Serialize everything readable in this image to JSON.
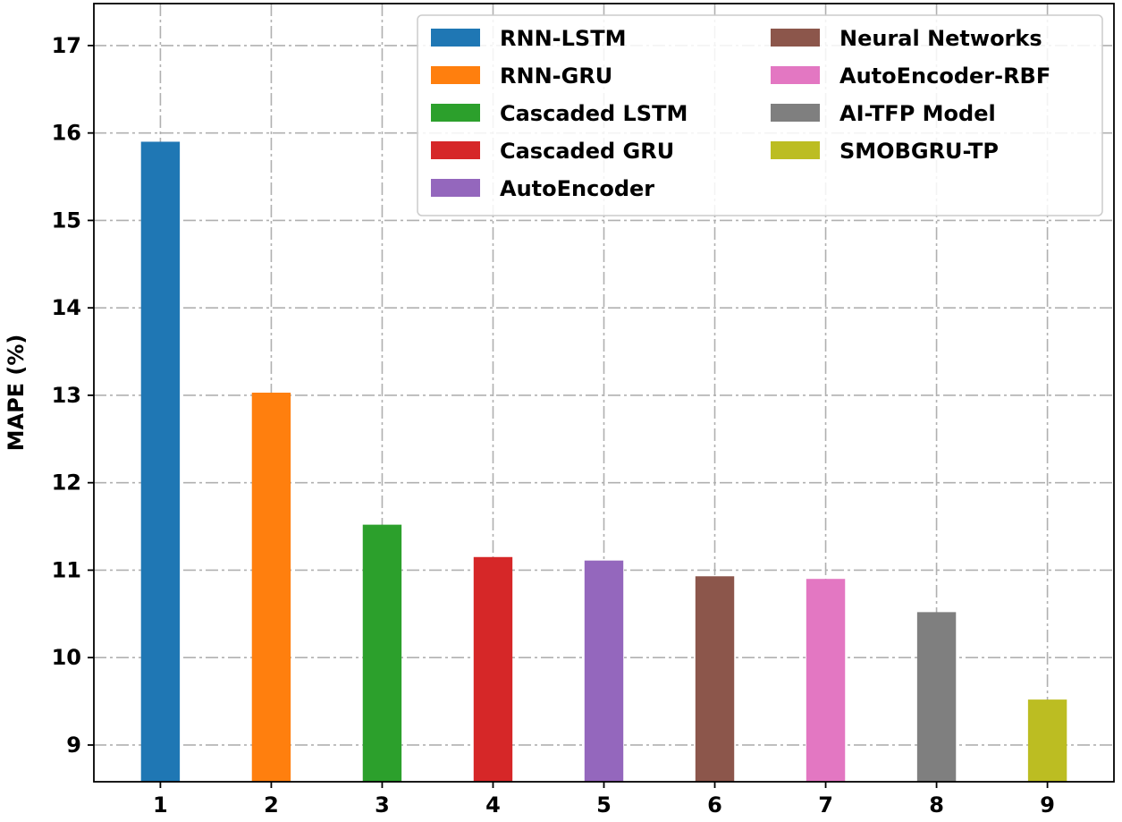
{
  "chart_data": {
    "type": "bar",
    "title": "",
    "xlabel": "",
    "ylabel": "MAPE (%)",
    "categories": [
      "1",
      "2",
      "3",
      "4",
      "5",
      "6",
      "7",
      "8",
      "9"
    ],
    "series": [
      {
        "name": "RNN-LSTM",
        "x": "1",
        "value": 15.9,
        "color": "#1f77b4"
      },
      {
        "name": "RNN-GRU",
        "x": "2",
        "value": 13.03,
        "color": "#ff7f0e"
      },
      {
        "name": "Cascaded LSTM",
        "x": "3",
        "value": 11.52,
        "color": "#2ca02c"
      },
      {
        "name": "Cascaded GRU",
        "x": "4",
        "value": 11.15,
        "color": "#d62728"
      },
      {
        "name": "AutoEncoder",
        "x": "5",
        "value": 11.11,
        "color": "#9467bd"
      },
      {
        "name": "Neural Networks",
        "x": "6",
        "value": 10.93,
        "color": "#8c564b"
      },
      {
        "name": "AutoEncoder-RBF",
        "x": "7",
        "value": 10.9,
        "color": "#e377c2"
      },
      {
        "name": "AI-TFP Model",
        "x": "8",
        "value": 10.52,
        "color": "#7f7f7f"
      },
      {
        "name": "SMOBGRU-TP",
        "x": "9",
        "value": 9.52,
        "color": "#bcbd22"
      }
    ],
    "yticks": [
      "9",
      "10",
      "11",
      "12",
      "13",
      "14",
      "15",
      "16",
      "17"
    ],
    "ylim": [
      8.58,
      17.48
    ],
    "xlim": [
      0.4,
      9.6
    ],
    "bar_width": 0.35,
    "grid": true,
    "legend_location": "upper right",
    "legend_columns": 2
  }
}
